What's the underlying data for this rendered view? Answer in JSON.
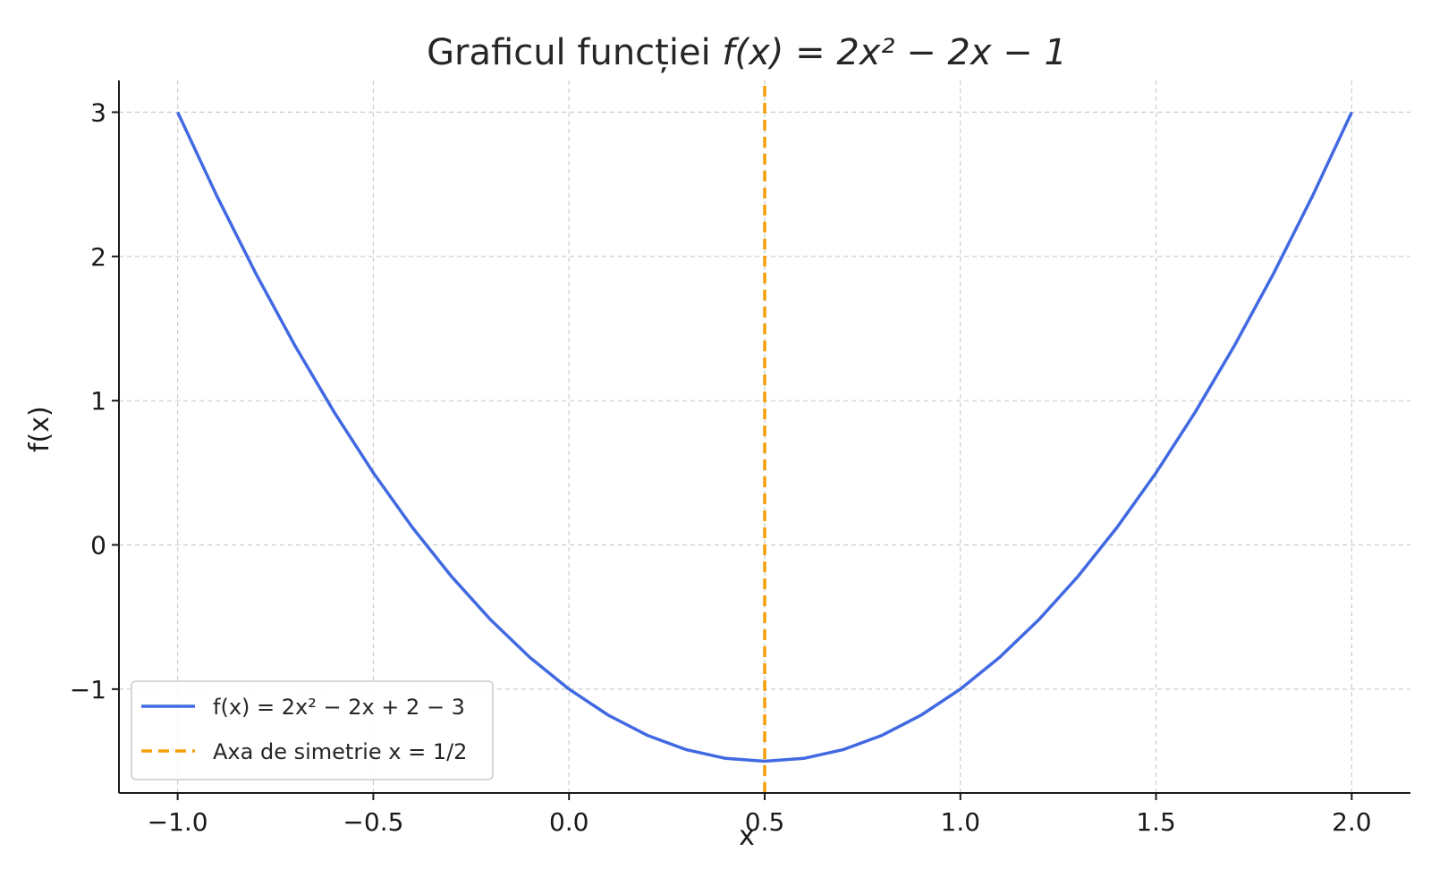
{
  "chart_data": {
    "type": "line",
    "title": {
      "prefix": "Graficul funcției ",
      "formula": "f(x) = 2x² − 2x − 1"
    },
    "xlabel": "x",
    "ylabel": "f(x)",
    "xlim": [
      -1.15,
      2.15
    ],
    "ylim": [
      -1.72,
      3.22
    ],
    "x_ticks": [
      -1.0,
      -0.5,
      0.0,
      0.5,
      1.0,
      1.5,
      2.0
    ],
    "x_tick_labels": [
      "−1.0",
      "−0.5",
      "0.0",
      "0.5",
      "1.0",
      "1.5",
      "2.0"
    ],
    "y_ticks": [
      -1,
      0,
      1,
      2,
      3
    ],
    "y_tick_labels": [
      "−1",
      "0",
      "1",
      "2",
      "3"
    ],
    "grid": true,
    "legend_position": "lower-left",
    "series": [
      {
        "name": "f(x) = 2x² − 2x + 2 − 3",
        "color": "#4169e1",
        "style": "solid",
        "x": [
          -1.0,
          -0.9,
          -0.8,
          -0.7,
          -0.6,
          -0.5,
          -0.4,
          -0.3,
          -0.2,
          -0.1,
          0.0,
          0.1,
          0.2,
          0.3,
          0.4,
          0.5,
          0.6,
          0.7,
          0.8,
          0.9,
          1.0,
          1.1,
          1.2,
          1.3,
          1.4,
          1.5,
          1.6,
          1.7,
          1.8,
          1.9,
          2.0
        ],
        "y": [
          3.0,
          2.42,
          1.88,
          1.38,
          0.92,
          0.5,
          0.12,
          -0.22,
          -0.52,
          -0.78,
          -1.0,
          -1.18,
          -1.32,
          -1.42,
          -1.48,
          -1.5,
          -1.48,
          -1.42,
          -1.32,
          -1.18,
          -1.0,
          -0.78,
          -0.52,
          -0.22,
          0.12,
          0.5,
          0.92,
          1.38,
          1.88,
          2.42,
          3.0
        ]
      },
      {
        "name": "Axa de simetrie x = 1/2",
        "color": "#f5a00a",
        "style": "dashed",
        "x": [
          0.5,
          0.5
        ],
        "y": [
          -1.72,
          3.22
        ]
      }
    ]
  }
}
